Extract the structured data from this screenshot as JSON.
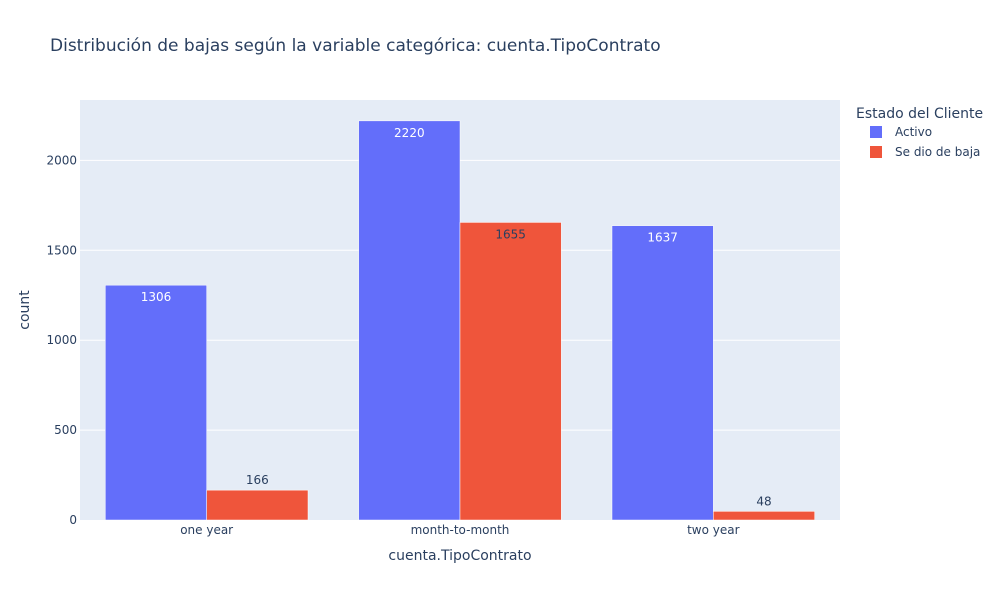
{
  "chart_data": {
    "type": "bar",
    "title": "Distribución de bajas según la variable categórica: cuenta.TipoContrato",
    "xlabel": "cuenta.TipoContrato",
    "ylabel": "count",
    "categories": [
      "one year",
      "month-to-month",
      "two year"
    ],
    "series": [
      {
        "name": "Activo",
        "values": [
          1306,
          2220,
          1637
        ],
        "color": "#636efa"
      },
      {
        "name": "Se dio de baja",
        "values": [
          166,
          1655,
          48
        ],
        "color": "#ef553b"
      }
    ],
    "ylim": [
      0,
      2336
    ],
    "yticks": [
      0,
      500,
      1000,
      1500,
      2000
    ],
    "grid": true,
    "legend": {
      "title": "Estado del Cliente",
      "position": "top-right"
    }
  }
}
